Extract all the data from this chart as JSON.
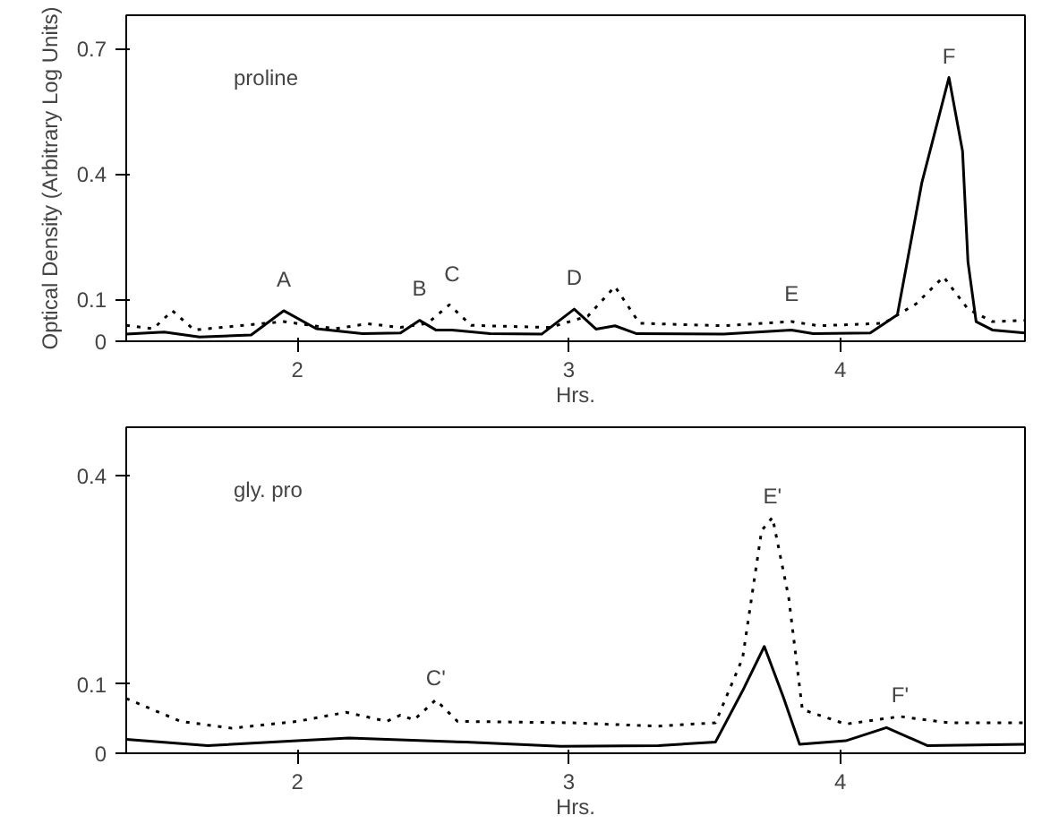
{
  "chart_data": [
    {
      "type": "line",
      "xlabel": "Hrs.",
      "ylabel": "Optical Density (Arbitrary Log Units)",
      "xlim": [
        1.37,
        4.68
      ],
      "xticks": [
        2,
        3,
        4
      ],
      "ylim": [
        0,
        0.78
      ],
      "yticks": [
        0,
        0.1,
        0.4,
        0.7
      ],
      "grid": false,
      "annotations": [
        "proline",
        {
          "text": "A",
          "x": 1.95,
          "y": 0.097
        },
        {
          "text": "B",
          "x": 2.45,
          "y": 0.074
        },
        {
          "text": "C",
          "x": 2.57,
          "y": 0.11
        },
        {
          "text": "D",
          "x": 3.02,
          "y": 0.1
        },
        {
          "text": "E",
          "x": 3.82,
          "y": 0.063
        },
        {
          "text": "F",
          "x": 4.4,
          "y": 0.631
        }
      ],
      "series": [
        {
          "color": "#000000",
          "line_style": "solid",
          "x": [
            1.37,
            1.51,
            1.64,
            1.83,
            1.95,
            2.07,
            2.24,
            2.38,
            2.45,
            2.51,
            2.57,
            2.71,
            2.9,
            3.02,
            3.1,
            3.17,
            3.25,
            3.57,
            3.82,
            3.9,
            4.11,
            4.21,
            4.3,
            4.4,
            4.45,
            4.47,
            4.5,
            4.56,
            4.68
          ],
          "values": [
            0.017,
            0.022,
            0.01,
            0.015,
            0.073,
            0.03,
            0.018,
            0.02,
            0.05,
            0.027,
            0.027,
            0.018,
            0.017,
            0.077,
            0.029,
            0.037,
            0.018,
            0.017,
            0.027,
            0.018,
            0.02,
            0.063,
            0.379,
            0.631,
            0.455,
            0.19,
            0.047,
            0.027,
            0.02
          ]
        },
        {
          "color": "#000000",
          "line_style": "dotted",
          "x": [
            1.37,
            1.47,
            1.54,
            1.62,
            1.95,
            2.14,
            2.26,
            2.38,
            2.48,
            2.56,
            2.64,
            2.93,
            3.07,
            3.17,
            3.26,
            3.57,
            3.82,
            3.92,
            4.16,
            4.28,
            4.38,
            4.47,
            4.56,
            4.68
          ],
          "values": [
            0.038,
            0.03,
            0.073,
            0.027,
            0.047,
            0.03,
            0.042,
            0.033,
            0.043,
            0.087,
            0.038,
            0.033,
            0.06,
            0.131,
            0.043,
            0.037,
            0.047,
            0.037,
            0.043,
            0.09,
            0.154,
            0.077,
            0.047,
            0.05
          ]
        }
      ]
    },
    {
      "type": "line",
      "xlabel": "Hrs.",
      "xlim": [
        1.37,
        4.68
      ],
      "xticks": [
        2,
        3,
        4
      ],
      "ylim": [
        0,
        0.47
      ],
      "yticks": [
        0,
        0.1,
        0.4
      ],
      "grid": false,
      "annotations": [
        "gly. pro",
        {
          "text": "C'",
          "x": 2.51,
          "y": 0.077
        },
        {
          "text": "E'",
          "x": 3.75,
          "y": 0.34
        },
        {
          "text": "F'",
          "x": 4.22,
          "y": 0.053
        }
      ],
      "series": [
        {
          "color": "#000000",
          "line_style": "solid",
          "x": [
            1.37,
            1.67,
            2.0,
            2.19,
            2.62,
            2.97,
            3.33,
            3.54,
            3.64,
            3.72,
            3.79,
            3.85,
            4.02,
            4.17,
            4.32,
            4.68
          ],
          "values": [
            0.02,
            0.011,
            0.018,
            0.022,
            0.016,
            0.01,
            0.011,
            0.016,
            0.09,
            0.154,
            0.081,
            0.013,
            0.018,
            0.037,
            0.011,
            0.013
          ]
        },
        {
          "color": "#000000",
          "line_style": "dotted",
          "x": [
            1.37,
            1.57,
            1.76,
            2.0,
            2.18,
            2.33,
            2.38,
            2.43,
            2.51,
            2.59,
            3.0,
            3.33,
            3.54,
            3.64,
            3.71,
            3.75,
            3.81,
            3.86,
            4.02,
            4.22,
            4.4,
            4.68
          ],
          "values": [
            0.079,
            0.046,
            0.036,
            0.046,
            0.059,
            0.046,
            0.055,
            0.048,
            0.077,
            0.046,
            0.044,
            0.039,
            0.044,
            0.137,
            0.321,
            0.34,
            0.224,
            0.063,
            0.042,
            0.053,
            0.044,
            0.044
          ]
        }
      ]
    }
  ]
}
